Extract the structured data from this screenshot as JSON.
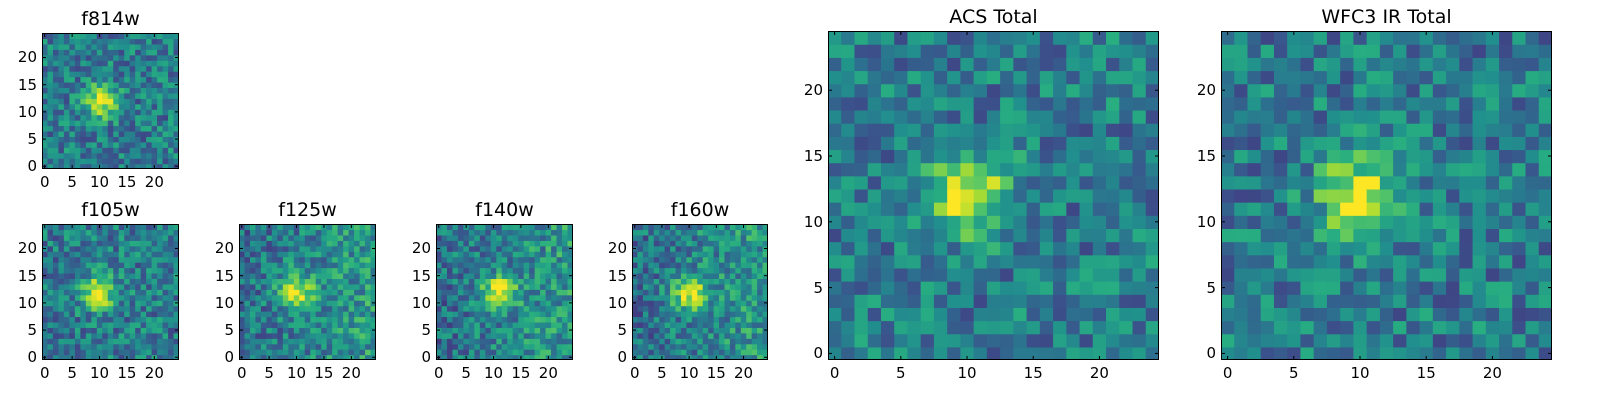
{
  "chart_data": [
    {
      "type": "heatmap",
      "title": "f814w",
      "colormap": "viridis",
      "grid_size": 25,
      "peak_center": [
        10,
        12
      ],
      "x_ticks": [
        0,
        5,
        10,
        15,
        20
      ],
      "y_ticks": [
        0,
        5,
        10,
        15,
        20
      ],
      "xlim": [
        0,
        25
      ],
      "ylim": [
        0,
        25
      ]
    },
    {
      "type": "heatmap",
      "title": "f105w",
      "colormap": "viridis",
      "grid_size": 25,
      "peak_center": [
        10,
        12
      ],
      "x_ticks": [
        0,
        5,
        10,
        15,
        20
      ],
      "y_ticks": [
        0,
        5,
        10,
        15,
        20
      ],
      "xlim": [
        0,
        25
      ],
      "ylim": [
        0,
        25
      ]
    },
    {
      "type": "heatmap",
      "title": "f125w",
      "colormap": "viridis",
      "grid_size": 25,
      "peak_center": [
        10,
        12
      ],
      "x_ticks": [
        0,
        5,
        10,
        15,
        20
      ],
      "y_ticks": [
        0,
        5,
        10,
        15,
        20
      ],
      "xlim": [
        0,
        25
      ],
      "ylim": [
        0,
        25
      ]
    },
    {
      "type": "heatmap",
      "title": "f140w",
      "colormap": "viridis",
      "grid_size": 25,
      "peak_center": [
        11,
        12
      ],
      "x_ticks": [
        0,
        5,
        10,
        15,
        20
      ],
      "y_ticks": [
        0,
        5,
        10,
        15,
        20
      ],
      "xlim": [
        0,
        25
      ],
      "ylim": [
        0,
        25
      ]
    },
    {
      "type": "heatmap",
      "title": "f160w",
      "colormap": "viridis",
      "grid_size": 25,
      "peak_center": [
        10,
        12
      ],
      "x_ticks": [
        0,
        5,
        10,
        15,
        20
      ],
      "y_ticks": [
        0,
        5,
        10,
        15,
        20
      ],
      "xlim": [
        0,
        25
      ],
      "ylim": [
        0,
        25
      ]
    },
    {
      "type": "heatmap",
      "title": "ACS Total",
      "colormap": "viridis",
      "grid_size": 25,
      "peak_center": [
        10,
        12
      ],
      "x_ticks": [
        0,
        5,
        10,
        15,
        20
      ],
      "y_ticks": [
        0,
        5,
        10,
        15,
        20
      ],
      "xlim": [
        0,
        25
      ],
      "ylim": [
        0,
        25
      ]
    },
    {
      "type": "heatmap",
      "title": "WFC3 IR Total",
      "colormap": "viridis",
      "grid_size": 25,
      "peak_center": [
        10,
        12
      ],
      "x_ticks": [
        0,
        5,
        10,
        15,
        20
      ],
      "y_ticks": [
        0,
        5,
        10,
        15,
        20
      ],
      "xlim": [
        0,
        25
      ],
      "ylim": [
        0,
        25
      ]
    }
  ]
}
